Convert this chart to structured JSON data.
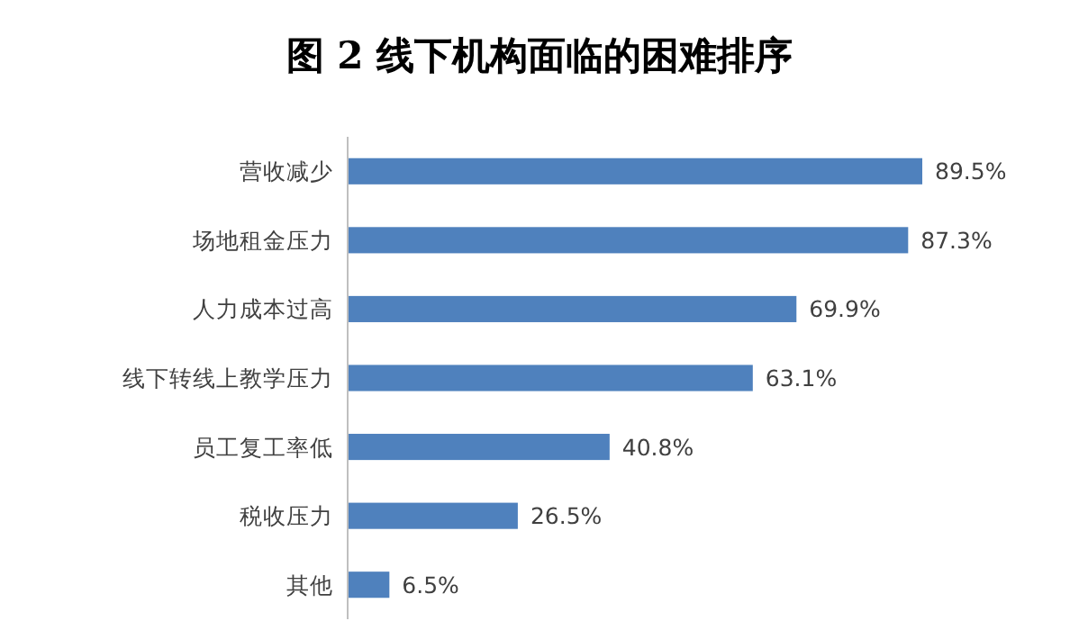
{
  "chart_data": {
    "type": "bar",
    "orientation": "horizontal",
    "title": "图 2  线下机构面临的困难排序",
    "categories": [
      "营收减少",
      "场地租金压力",
      "人力成本过高",
      "线下转线上教学压力",
      "员工复工率低",
      "税收压力",
      "其他"
    ],
    "series": [
      {
        "color": "#4f81bd",
        "values": [
          89.5,
          87.3,
          69.9,
          63.1,
          40.8,
          26.5,
          6.5
        ],
        "value_labels": [
          "89.5%",
          "87.3%",
          "69.9%",
          "63.1%",
          "40.8%",
          "26.5%",
          "6.5%"
        ]
      }
    ]
  }
}
